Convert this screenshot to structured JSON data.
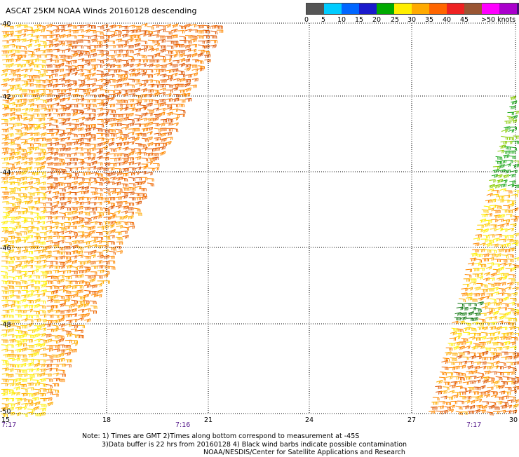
{
  "title": "ASCAT 25KM NOAA Winds 20160128 descending",
  "legend": {
    "colors": [
      "#555555",
      "#00ccff",
      "#0066ff",
      "#1a1acc",
      "#00aa00",
      "#ffee00",
      "#ffaa00",
      "#ff6600",
      "#ee2222",
      "#995533",
      "#ff00ff",
      "#aa00cc",
      "#441177"
    ],
    "labels": [
      "0",
      "5",
      "10",
      "15",
      "20",
      "25",
      "30",
      "35",
      "40",
      "45",
      ">50 knots"
    ]
  },
  "axes": {
    "lat_labels": [
      "-40",
      "-42",
      "-44",
      "-46",
      "-48",
      "-50"
    ],
    "lon_labels": [
      "15",
      "18",
      "21",
      "24",
      "27",
      "30"
    ]
  },
  "times": {
    "left": "7:17",
    "middle": "7:16",
    "right": "7:17"
  },
  "notes": {
    "line1": "Note: 1) Times are GMT 2)Times along bottom correspond to measurement at -45S",
    "line2": "3)Data buffer is 22 hrs from 20160128 4) Black wind barbs indicate possible contamination",
    "line3": "NOAA/NESDIS/Center for Satellite Applications and Research"
  }
}
